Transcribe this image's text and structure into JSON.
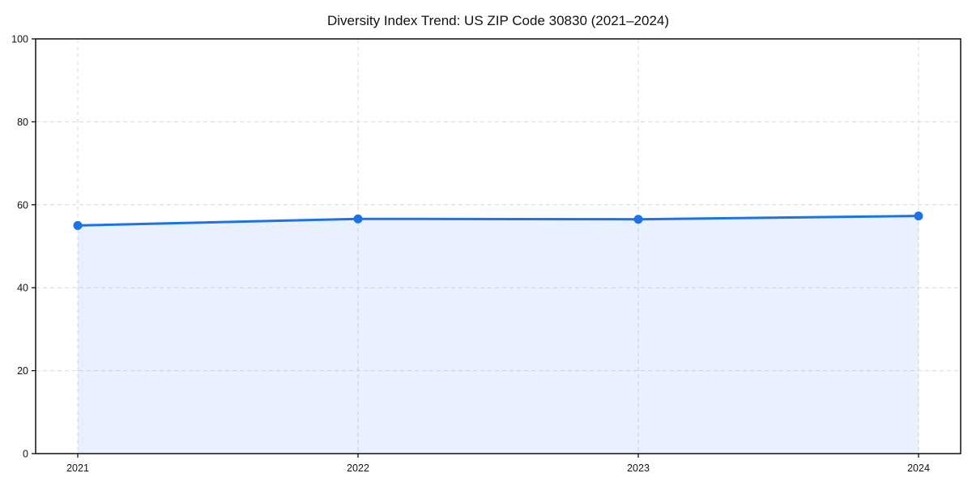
{
  "chart_data": {
    "type": "line",
    "title": "Diversity Index Trend: US ZIP Code 30830 (2021–2024)",
    "series_name": "Diversity Index",
    "categories": [
      "2021",
      "2022",
      "2023",
      "2024"
    ],
    "x": [
      2021,
      2022,
      2023,
      2024
    ],
    "values": [
      55.0,
      56.6,
      56.5,
      57.3
    ],
    "xlabel": "",
    "ylabel": "",
    "ylim": [
      0,
      100
    ],
    "yticks": [
      0,
      20,
      40,
      60,
      80,
      100
    ],
    "grid": true,
    "grid_style": "dashed",
    "legend_position": "none",
    "marker": "circle",
    "area_fill": true,
    "colors": {
      "line": "#1a73e8",
      "marker": "#1a73e8",
      "area_fill_rgba": "rgba(26,115,232,0.10)",
      "area_fill_approx": "#e8f0fc",
      "grid": "#d9d9d9",
      "axis": "#000000",
      "text": "#111111",
      "background": "#ffffff"
    }
  }
}
